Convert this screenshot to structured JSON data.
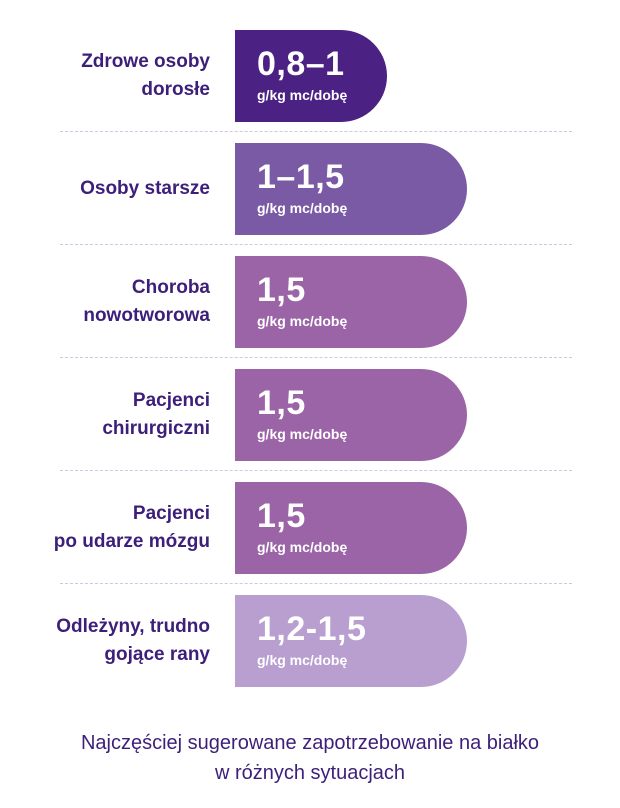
{
  "chart_data": {
    "type": "bar",
    "orientation": "horizontal",
    "categories": [
      "Zdrowe osoby\ndorosłe",
      "Osoby starsze",
      "Choroba\nnowotworowa",
      "Pacjenci\nchirurgiczni",
      "Pacjenci\npo udarze mózgu",
      "Odleżyny, trudno\ngojące rany"
    ],
    "value_labels": [
      "0,8–1",
      "1–1,5",
      "1,5",
      "1,5",
      "1,5",
      "1,2-1,5"
    ],
    "values": [
      1,
      1.5,
      1.5,
      1.5,
      1.5,
      1.5
    ],
    "unit": "g/kg mc/dobę",
    "colors": [
      "#4b2184",
      "#7a5aa4",
      "#9b64a6",
      "#9b64a6",
      "#9b64a6",
      "#b89fcf"
    ],
    "xlim": [
      0,
      1.5
    ],
    "caption": "Najczęściej sugerowane zapotrzebowanie na białko\nw różnych sytuacjach"
  }
}
